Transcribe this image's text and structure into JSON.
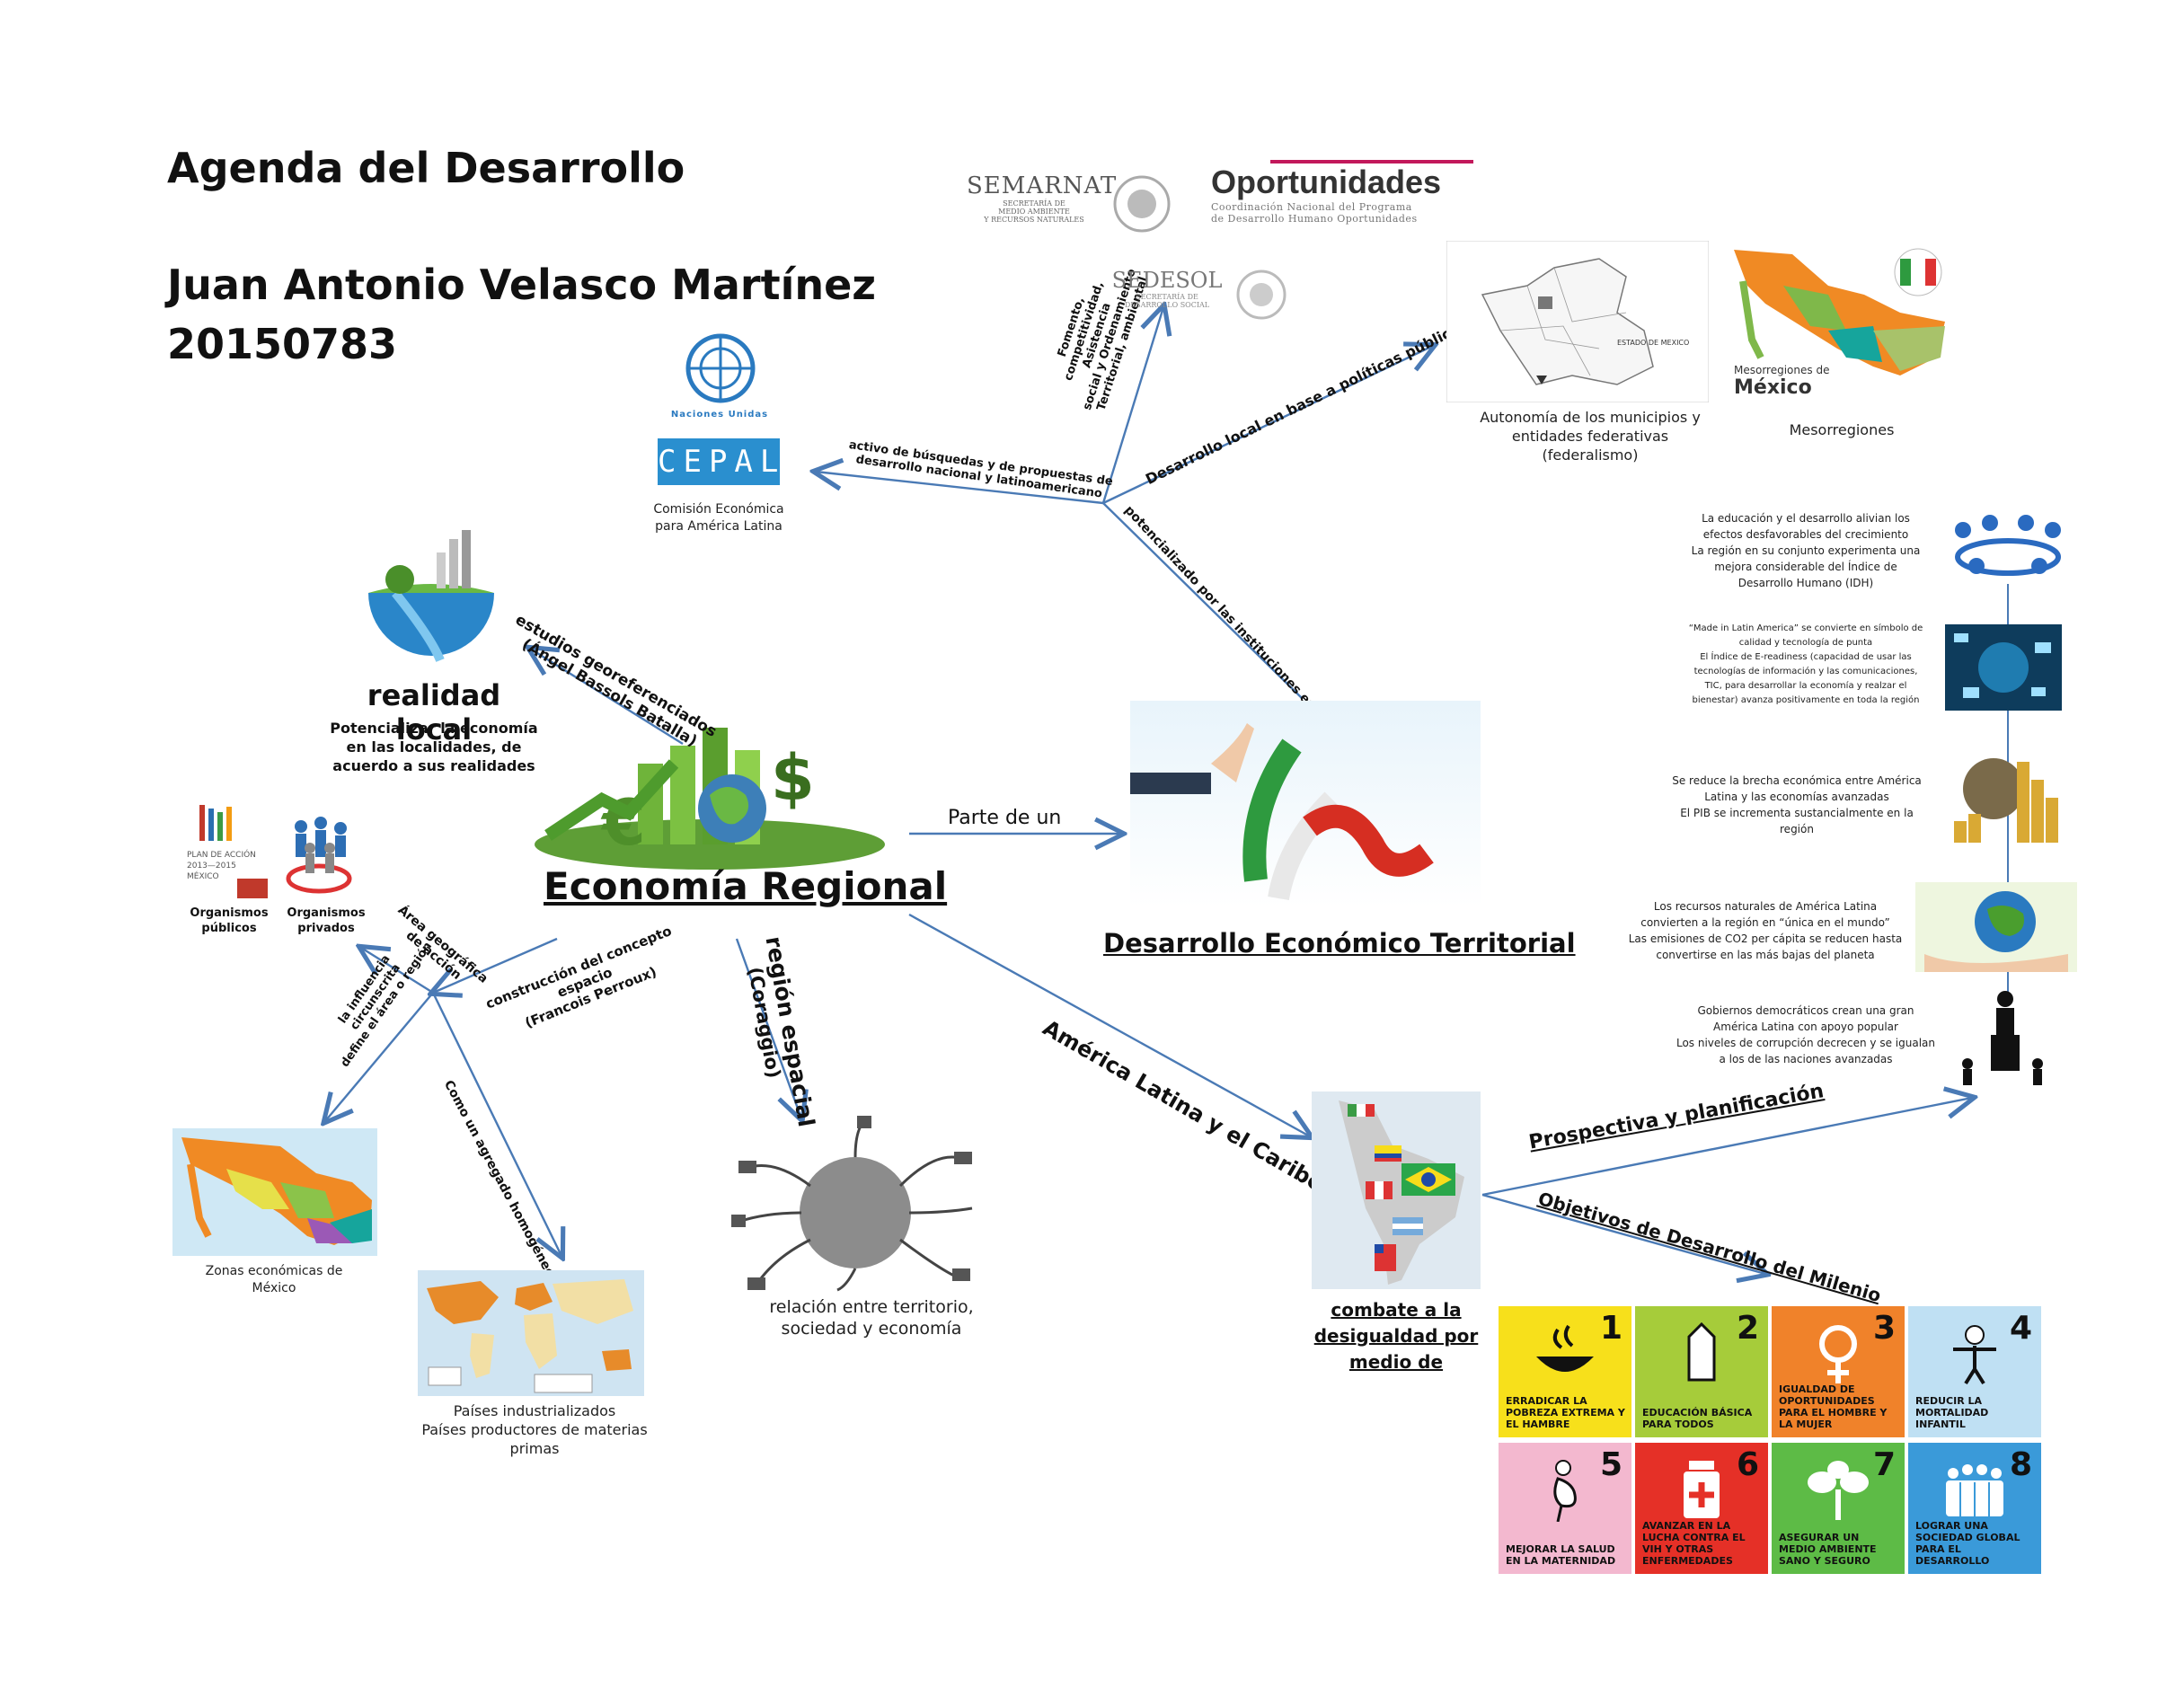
{
  "header": {
    "title": "Agenda del Desarrollo",
    "author": "Juan Antonio Velasco Martínez",
    "student_id": "20150783"
  },
  "center": {
    "title": "Economía Regional",
    "right_node": "Desarrollo Económico Territorial",
    "link_parte": "Parte de un"
  },
  "realidad": {
    "title": "realidad local",
    "desc_1": "Potencializar la economía",
    "desc_2": "en las localidades, de",
    "desc_3": "acuerdo a sus realidades"
  },
  "edges": {
    "estudios_1": "estudios georeferenciados",
    "estudios_2": "(Ángel Bassols Batalla)",
    "region_1": "región espacial",
    "region_2": "(Coraggio)",
    "construccion_1": "construcción del concepto",
    "construccion_2": "espacio",
    "construccion_3": "(Francois Perroux)",
    "area_1": "Área geográfica",
    "area_2": "de acción",
    "influencia_1": "la influencia",
    "influencia_2": "circunscrita",
    "influencia_3": "define el área o región",
    "agregado": "Como un agregado homogéneo",
    "america": "América Latina y el Caribe",
    "activo_1": "activo de búsquedas y de propuestas de",
    "activo_2": "desarrollo nacional y latinoamericano",
    "fomento_1": "Fomento,",
    "fomento_2": "competitividad,",
    "fomento_3": "Asistencia",
    "fomento_4": "social y Ordenamiento",
    "fomento_5": "Territorial, ambiental",
    "politicas": "Desarrollo local en base a políticas públicas",
    "potencializado": "potencializado por las instituciones enfocadas a",
    "prospectiva": "Prospectiva y planificación",
    "objetivos": "Objetivos de Desarrollo del Milenio"
  },
  "captions": {
    "cepal_1": "Comisión Económica",
    "cepal_2": "para América Latina",
    "organismos_publicos_1": "Organismos",
    "organismos_publicos_2": "públicos",
    "organismos_privados_1": "Organismos",
    "organismos_privados_2": "privados",
    "zonas_1": "Zonas económicas de",
    "zonas_2": "México",
    "paises_1": "Países industrializados",
    "paises_2": "Países productores de materias primas",
    "relacion_1": "relación entre territorio,",
    "relacion_2": "sociedad y economía",
    "autonomia_1": "Autonomía de los municipios y",
    "autonomia_2": "entidades federativas",
    "autonomia_3": "(federalismo)",
    "mesorregiones": "Mesorregiones",
    "combate_1": "combate a la",
    "combate_2": "desigualdad por",
    "combate_3": "medio de"
  },
  "logos": {
    "semarnat": "SEMARNAT",
    "semarnat_sub_1": "SECRETARÍA DE",
    "semarnat_sub_2": "MEDIO AMBIENTE",
    "semarnat_sub_3": "Y RECURSOS NATURALES",
    "oportunidades": "Oportunidades",
    "oportunidades_sub_1": "Coordinación Nacional del Programa",
    "oportunidades_sub_2": "de Desarrollo Humano Oportunidades",
    "sedesol": "SEDESOL",
    "sedesol_sub_1": "SECRETARÍA DE",
    "sedesol_sub_2": "DESARROLLO SOCIAL",
    "naciones_unidas": "Naciones Unidas",
    "cepal": "CEPAL",
    "plan_1": "PLAN DE ACCIÓN",
    "plan_2": "2013—2015",
    "plan_3": "MÉXICO",
    "mesorregiones_de": "Mesorregiones de",
    "mexico": "México",
    "estado_de_mexico": "ESTADO DE MEXICO"
  },
  "side_notes": {
    "n1": [
      "La educación y el desarrollo alivian los",
      "efectos desfavorables del crecimiento",
      "La región en su conjunto experimenta una",
      "mejora considerable del Índice de",
      "Desarrollo Humano (IDH)"
    ],
    "n2": [
      "“Made in Latin America” se convierte en símbolo de",
      "calidad y tecnología de punta",
      "El Índice de E-readiness (capacidad de usar las",
      "tecnologías de información y las comunicaciones,",
      "TIC, para desarrollar la economía y realzar el",
      "bienestar) avanza positivamente en toda la región"
    ],
    "n3": [
      "Se reduce la brecha económica entre América",
      "Latina y las economías avanzadas",
      "El PIB se incrementa sustancialmente en la",
      "región"
    ],
    "n4": [
      "Los recursos naturales de América Latina",
      "convierten a la región en “única en el mundo”",
      "Las emisiones de CO2 per cápita se reducen hasta",
      "convertirse en las más bajas del planeta"
    ],
    "n5": [
      "Gobiernos democráticos crean una gran",
      "América Latina con apoyo popular",
      "Los niveles de corrupción decrecen y se igualan",
      "a los de las naciones avanzadas"
    ]
  },
  "mdg": [
    {
      "num": "1",
      "text": "Erradicar la pobreza extrema y el hambre",
      "color": "#f7e01b"
    },
    {
      "num": "2",
      "text": "Educación básica para todos",
      "color": "#a6cc3a"
    },
    {
      "num": "3",
      "text": "Igualdad de oportunidades para el hombre y la mujer",
      "color": "#f0822a"
    },
    {
      "num": "4",
      "text": "Reducir la mortalidad infantil",
      "color": "#bfe0f3"
    },
    {
      "num": "5",
      "text": "Mejorar la salud en la maternidad",
      "color": "#f3b8cf"
    },
    {
      "num": "6",
      "text": "Avanzar en la lucha contra el VIH y otras enfermedades",
      "color": "#e53027"
    },
    {
      "num": "7",
      "text": "Asegurar un medio ambiente sano y seguro",
      "color": "#5dbb46"
    },
    {
      "num": "8",
      "text": "Lograr una sociedad global para el desarrollo",
      "color": "#3a9ad9"
    }
  ],
  "colors": {
    "arrow": "#4a7ab5",
    "mexico_orange": "#f08a24",
    "mexico_green": "#8bc34a",
    "mexico_teal": "#16a59c"
  }
}
